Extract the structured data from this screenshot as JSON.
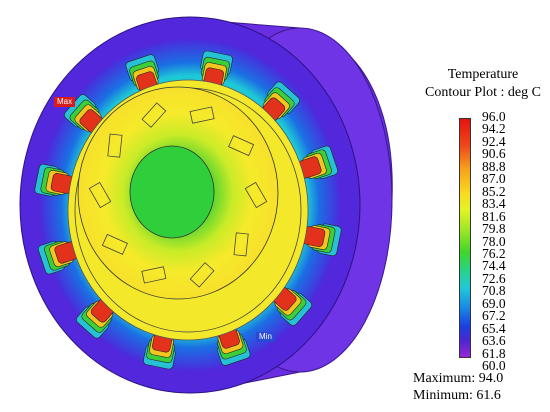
{
  "legend": {
    "title_line1": "Temperature",
    "title_line2": "Contour Plot : deg C",
    "ticks": [
      "96.0",
      "94.2",
      "92.4",
      "90.6",
      "88.8",
      "87.0",
      "85.2",
      "83.4",
      "81.6",
      "79.8",
      "78.0",
      "76.2",
      "74.4",
      "72.6",
      "70.8",
      "69.0",
      "67.2",
      "65.4",
      "63.6",
      "61.8",
      "60.0"
    ],
    "colors_top_to_bottom": [
      "#e5130f",
      "#f0461a",
      "#f6a11c",
      "#fad91f",
      "#e3f423",
      "#9be527",
      "#3fd62a",
      "#26d38b",
      "#22c8d8",
      "#1a8be5",
      "#1b41e0",
      "#4a26d1",
      "#9a25d4"
    ]
  },
  "stats": {
    "maximum": "Maximum: 94.0",
    "minimum": "Minimum: 61.6"
  },
  "markers": {
    "max_label": "Max",
    "min_label": "Min"
  },
  "colors": {
    "housing": "#5a2be0",
    "housing_side": "#6b2fe6",
    "winding_hot": "#e3321b",
    "rotor_center": "#2fd13a",
    "stator_field": "#f5e92a"
  }
}
